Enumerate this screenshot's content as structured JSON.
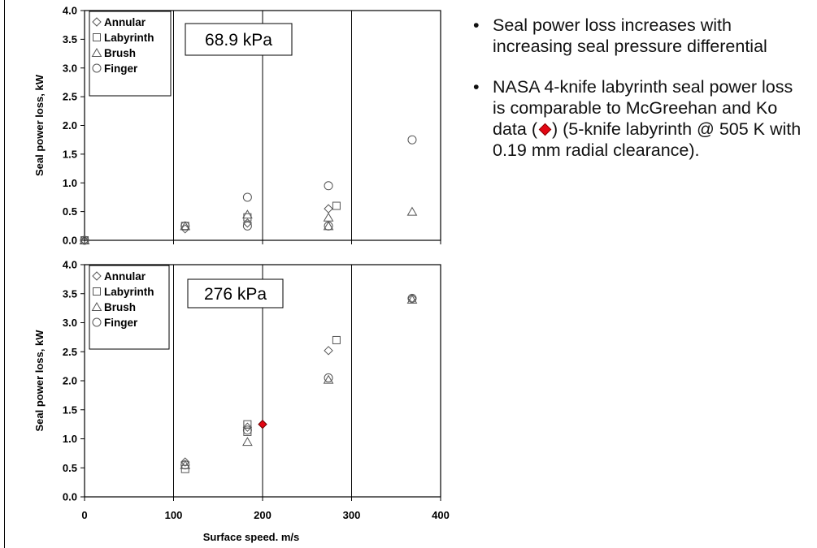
{
  "slide": {
    "bullets": [
      {
        "before": "Seal power loss increases with increasing seal pressure differential",
        "after": ""
      },
      {
        "before": "NASA 4-knife labyrinth seal power loss is comparable to McGreehan and Ko data (",
        "after": ") (5-knife labyrinth @ 505 K with 0.19 mm radial clearance)."
      }
    ],
    "bullet_char": "•"
  },
  "chart_data": [
    {
      "type": "scatter",
      "title": "68.9 kPa",
      "ylabel": "Seal power loss, kW",
      "xlabel": "",
      "xlim": [
        0,
        400
      ],
      "ylim": [
        0,
        4
      ],
      "xticks": [
        "0",
        "100",
        "200",
        "300",
        "400"
      ],
      "yticks": [
        "0.0",
        "0.5",
        "1.0",
        "1.5",
        "2.0",
        "2.5",
        "3.0",
        "3.5",
        "4.0"
      ],
      "show_x_tick_labels": false,
      "grid": "vertical",
      "legend_position": "top-left",
      "series": [
        {
          "name": "Annular",
          "marker": "diamond",
          "points": [
            [
              0,
              0
            ],
            [
              113,
              0.2
            ],
            [
              183,
              0.3
            ],
            [
              274,
              0.55
            ]
          ]
        },
        {
          "name": "Labyrinth",
          "marker": "square",
          "points": [
            [
              0,
              0
            ],
            [
              113,
              0.25
            ],
            [
              183,
              0.4
            ],
            [
              283,
              0.6
            ]
          ]
        },
        {
          "name": "Brush",
          "marker": "triangle",
          "points": [
            [
              0,
              0
            ],
            [
              113,
              0.25
            ],
            [
              183,
              0.45
            ],
            [
              274,
              0.4
            ],
            [
              274,
              0.25
            ],
            [
              368,
              0.5
            ]
          ]
        },
        {
          "name": "Finger",
          "marker": "circle",
          "points": [
            [
              0,
              0
            ],
            [
              113,
              0.25
            ],
            [
              183,
              0.75
            ],
            [
              183,
              0.25
            ],
            [
              274,
              0.95
            ],
            [
              274,
              0.25
            ],
            [
              368,
              1.75
            ]
          ]
        }
      ],
      "highlight_points": []
    },
    {
      "type": "scatter",
      "title": "276 kPa",
      "ylabel": "Seal power loss, kW",
      "xlabel": "Surface speed. m/s",
      "xlim": [
        0,
        400
      ],
      "ylim": [
        0,
        4
      ],
      "xticks": [
        "0",
        "100",
        "200",
        "300",
        "400"
      ],
      "yticks": [
        "0.0",
        "0.5",
        "1.0",
        "1.5",
        "2.0",
        "2.5",
        "3.0",
        "3.5",
        "4.0"
      ],
      "show_x_tick_labels": true,
      "grid": "vertical",
      "legend_position": "top-left",
      "series": [
        {
          "name": "Annular",
          "marker": "diamond",
          "points": [
            [
              113,
              0.6
            ],
            [
              183,
              1.2
            ],
            [
              274,
              2.52
            ],
            [
              368,
              3.42
            ]
          ]
        },
        {
          "name": "Labyrinth",
          "marker": "square",
          "points": [
            [
              113,
              0.48
            ],
            [
              183,
              1.25
            ],
            [
              183,
              1.12
            ],
            [
              283,
              2.7
            ]
          ]
        },
        {
          "name": "Brush",
          "marker": "triangle",
          "points": [
            [
              113,
              0.55
            ],
            [
              183,
              0.95
            ],
            [
              274,
              2.02
            ],
            [
              368,
              3.4
            ]
          ]
        },
        {
          "name": "Finger",
          "marker": "circle",
          "points": [
            [
              113,
              0.55
            ],
            [
              183,
              1.15
            ],
            [
              274,
              2.05
            ],
            [
              368,
              3.42
            ]
          ]
        }
      ],
      "highlight_points": [
        {
          "label": "McGreehan and Ko",
          "marker": "diamond",
          "color": "#e30613",
          "point": [
            200,
            1.25
          ]
        }
      ]
    }
  ]
}
